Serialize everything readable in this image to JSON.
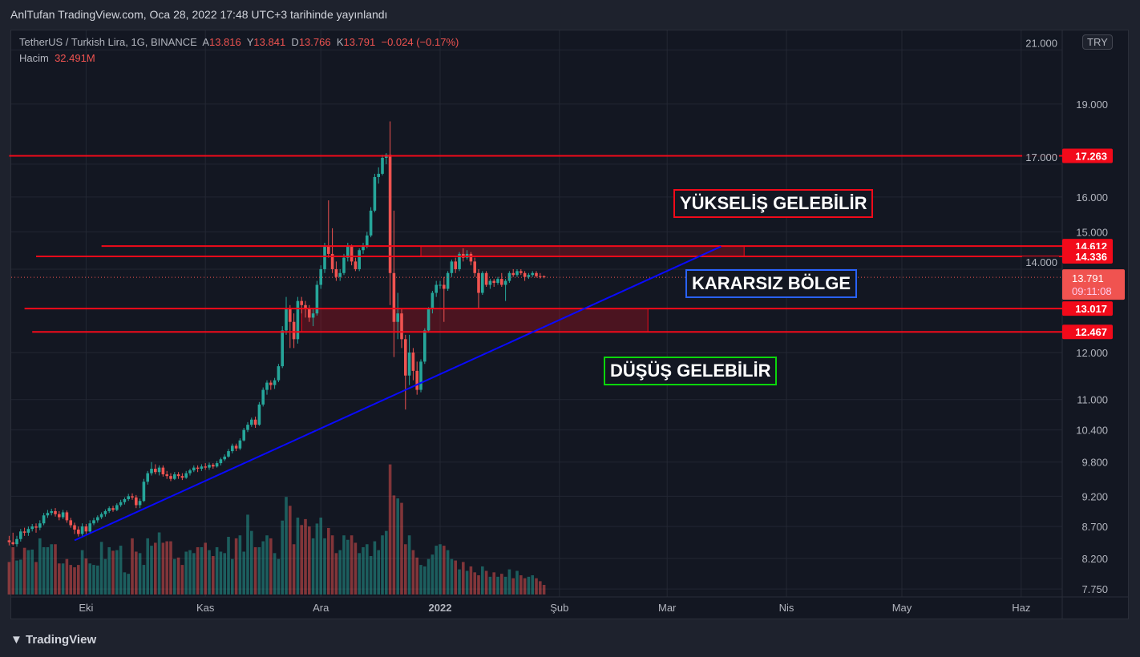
{
  "header": {
    "title": "AnlTufan TradingView.com, Oca 28, 2022 17:48 UTC+3 tarihinde yayınlandı"
  },
  "legend": {
    "symbol": "TetherUS / Turkish Lira, 1G, BINANCE",
    "open_label": "A",
    "open": "13.816",
    "high_label": "Y",
    "high": "13.841",
    "low_label": "D",
    "low": "13.766",
    "close_label": "K",
    "close": "13.791",
    "change": "−0.024 (−0.17%)",
    "volume_label": "Hacim",
    "volume": "32.491M"
  },
  "currency_button": "TRY",
  "footer": {
    "logo": "TradingView"
  },
  "colors": {
    "up": "#26a69a",
    "down": "#ef5350",
    "level": "#f20a1a",
    "trend": "#0a0aff",
    "bg": "#131722"
  },
  "chart_data": {
    "type": "candlestick",
    "y_scale": "log",
    "ylim": [
      7.6,
      21.5
    ],
    "grid": true,
    "y_ticks": [
      "21.000",
      "19.000",
      "17.000",
      "16.000",
      "15.000",
      "14.000",
      "12.000",
      "11.000",
      "10.400",
      "9.800",
      "9.200",
      "8.700",
      "8.200",
      "7.750"
    ],
    "x_ticks": [
      {
        "label": "Eki",
        "date": "2021-10-01"
      },
      {
        "label": "Kas",
        "date": "2021-11-01"
      },
      {
        "label": "Ara",
        "date": "2021-12-01"
      },
      {
        "label": "2022",
        "date": "2022-01-01"
      },
      {
        "label": "Şub",
        "date": "2022-02-01"
      },
      {
        "label": "Mar",
        "date": "2022-03-01"
      },
      {
        "label": "Nis",
        "date": "2022-04-01"
      },
      {
        "label": "May",
        "date": "2022-05-01"
      },
      {
        "label": "Haz",
        "date": "2022-06-01"
      }
    ],
    "last_price": {
      "value": "13.791",
      "countdown": "09:11:08"
    },
    "levels": [
      {
        "value": 17.263,
        "label": "17.263",
        "from": "2021-09-11"
      },
      {
        "value": 14.612,
        "label": "14.612",
        "from": "2021-10-05"
      },
      {
        "value": 14.336,
        "label": "14.336",
        "from": "2021-09-18"
      },
      {
        "value": 13.017,
        "label": "13.017",
        "from": "2021-09-15"
      },
      {
        "value": 12.467,
        "label": "12.467",
        "from": "2021-09-17"
      }
    ],
    "zones": [
      {
        "top": 14.612,
        "bottom": 14.336,
        "from": "2021-12-27",
        "to": "2022-03-21"
      },
      {
        "top": 13.017,
        "bottom": 12.467,
        "from": "2021-11-26",
        "to": "2022-02-24"
      }
    ],
    "trendline": {
      "from": {
        "date": "2021-09-28",
        "price": 8.48
      },
      "to": {
        "date": "2022-03-15",
        "price": 14.6
      }
    },
    "annotations": [
      {
        "text": "YÜKSELİŞ GELEBİLİR",
        "border": "#f20a1a"
      },
      {
        "text": "KARARSIZ BÖLGE",
        "border": "#2962ff"
      },
      {
        "text": "DÜŞÜŞ GELEBİLİR",
        "border": "#0bd60b"
      }
    ],
    "candles_columns": [
      "date",
      "open",
      "high",
      "low",
      "close",
      "volume_M"
    ],
    "candles": [
      [
        "2021-09-11",
        8.48,
        8.55,
        8.4,
        8.45,
        110
      ],
      [
        "2021-09-12",
        8.45,
        8.6,
        8.4,
        8.42,
        160
      ],
      [
        "2021-09-13",
        8.42,
        8.55,
        8.38,
        8.5,
        115
      ],
      [
        "2021-09-14",
        8.5,
        8.66,
        8.46,
        8.62,
        118
      ],
      [
        "2021-09-15",
        8.62,
        8.68,
        8.55,
        8.6,
        158
      ],
      [
        "2021-09-16",
        8.6,
        8.7,
        8.55,
        8.66,
        150
      ],
      [
        "2021-09-17",
        8.66,
        8.74,
        8.62,
        8.7,
        152
      ],
      [
        "2021-09-18",
        8.7,
        8.75,
        8.6,
        8.68,
        110
      ],
      [
        "2021-09-19",
        8.68,
        8.8,
        8.64,
        8.75,
        190
      ],
      [
        "2021-09-20",
        8.75,
        8.92,
        8.72,
        8.88,
        160
      ],
      [
        "2021-09-21",
        8.88,
        8.97,
        8.84,
        8.92,
        160
      ],
      [
        "2021-09-22",
        8.92,
        8.99,
        8.88,
        8.95,
        170
      ],
      [
        "2021-09-23",
        8.95,
        9.0,
        8.86,
        8.9,
        170
      ],
      [
        "2021-09-24",
        8.9,
        8.95,
        8.8,
        8.85,
        105
      ],
      [
        "2021-09-25",
        8.85,
        8.97,
        8.82,
        8.93,
        105
      ],
      [
        "2021-09-26",
        8.93,
        8.96,
        8.76,
        8.8,
        120
      ],
      [
        "2021-09-27",
        8.8,
        8.84,
        8.68,
        8.72,
        100
      ],
      [
        "2021-09-28",
        8.72,
        8.76,
        8.58,
        8.65,
        92
      ],
      [
        "2021-09-29",
        8.65,
        8.7,
        8.54,
        8.58,
        100
      ],
      [
        "2021-09-30",
        8.58,
        8.75,
        8.55,
        8.7,
        150
      ],
      [
        "2021-10-01",
        8.7,
        8.74,
        8.58,
        8.62,
        122
      ],
      [
        "2021-10-02",
        8.62,
        8.8,
        8.6,
        8.75,
        105
      ],
      [
        "2021-10-03",
        8.75,
        8.84,
        8.72,
        8.8,
        100
      ],
      [
        "2021-10-04",
        8.8,
        8.88,
        8.76,
        8.85,
        98
      ],
      [
        "2021-10-05",
        8.85,
        8.93,
        8.82,
        8.9,
        178
      ],
      [
        "2021-10-06",
        8.9,
        8.98,
        8.86,
        8.95,
        120
      ],
      [
        "2021-10-07",
        8.95,
        9.03,
        8.92,
        9.0,
        160
      ],
      [
        "2021-10-08",
        9.0,
        9.04,
        8.94,
        8.97,
        148
      ],
      [
        "2021-10-09",
        8.97,
        9.08,
        8.95,
        9.05,
        150
      ],
      [
        "2021-10-10",
        9.05,
        9.14,
        9.02,
        9.1,
        165
      ],
      [
        "2021-10-11",
        9.1,
        9.18,
        9.06,
        9.15,
        75
      ],
      [
        "2021-10-12",
        9.15,
        9.24,
        9.12,
        9.2,
        70
      ],
      [
        "2021-10-13",
        9.2,
        9.25,
        9.14,
        9.18,
        190
      ],
      [
        "2021-10-14",
        9.18,
        9.22,
        9.0,
        9.05,
        145
      ],
      [
        "2021-10-15",
        9.05,
        9.16,
        9.0,
        9.12,
        140
      ],
      [
        "2021-10-16",
        9.12,
        9.5,
        9.1,
        9.45,
        100
      ],
      [
        "2021-10-17",
        9.45,
        9.64,
        9.4,
        9.6,
        190
      ],
      [
        "2021-10-18",
        9.6,
        9.8,
        9.56,
        9.68,
        165
      ],
      [
        "2021-10-19",
        9.68,
        9.76,
        9.58,
        9.62,
        175
      ],
      [
        "2021-10-20",
        9.62,
        9.74,
        9.56,
        9.7,
        210
      ],
      [
        "2021-10-21",
        9.7,
        9.74,
        9.54,
        9.58,
        175
      ],
      [
        "2021-10-22",
        9.58,
        9.64,
        9.5,
        9.55,
        180
      ],
      [
        "2021-10-23",
        9.55,
        9.6,
        9.46,
        9.5,
        180
      ],
      [
        "2021-10-24",
        9.5,
        9.62,
        9.48,
        9.58,
        120
      ],
      [
        "2021-10-25",
        9.58,
        9.62,
        9.5,
        9.55,
        125
      ],
      [
        "2021-10-26",
        9.55,
        9.6,
        9.48,
        9.52,
        100
      ],
      [
        "2021-10-27",
        9.52,
        9.64,
        9.5,
        9.6,
        145
      ],
      [
        "2021-10-28",
        9.6,
        9.68,
        9.56,
        9.65,
        150
      ],
      [
        "2021-10-29",
        9.65,
        9.74,
        9.62,
        9.7,
        140
      ],
      [
        "2021-10-30",
        9.7,
        9.74,
        9.62,
        9.68,
        160
      ],
      [
        "2021-10-31",
        9.68,
        9.76,
        9.64,
        9.72,
        160
      ],
      [
        "2021-11-01",
        9.72,
        9.78,
        9.66,
        9.7,
        175
      ],
      [
        "2021-11-02",
        9.7,
        9.79,
        9.66,
        9.75,
        150
      ],
      [
        "2021-11-03",
        9.75,
        9.78,
        9.68,
        9.72,
        130
      ],
      [
        "2021-11-04",
        9.72,
        9.82,
        9.7,
        9.78,
        160
      ],
      [
        "2021-11-05",
        9.78,
        9.88,
        9.74,
        9.85,
        145
      ],
      [
        "2021-11-06",
        9.85,
        9.94,
        9.82,
        9.9,
        140
      ],
      [
        "2021-11-07",
        9.9,
        10.04,
        9.88,
        10.0,
        195
      ],
      [
        "2021-11-08",
        10.0,
        10.14,
        9.96,
        10.1,
        120
      ],
      [
        "2021-11-09",
        10.1,
        10.14,
        10.0,
        10.05,
        190
      ],
      [
        "2021-11-10",
        10.05,
        10.24,
        10.02,
        10.2,
        200
      ],
      [
        "2021-11-11",
        10.2,
        10.44,
        10.18,
        10.4,
        145
      ],
      [
        "2021-11-12",
        10.4,
        10.55,
        10.36,
        10.5,
        270
      ],
      [
        "2021-11-13",
        10.5,
        10.64,
        10.46,
        10.6,
        215
      ],
      [
        "2021-11-14",
        10.6,
        10.66,
        10.44,
        10.5,
        160
      ],
      [
        "2021-11-15",
        10.5,
        10.95,
        10.48,
        10.9,
        160
      ],
      [
        "2021-11-16",
        10.9,
        11.25,
        10.86,
        11.2,
        180
      ],
      [
        "2021-11-17",
        11.2,
        11.4,
        11.1,
        11.35,
        200
      ],
      [
        "2021-11-18",
        11.35,
        11.4,
        11.2,
        11.3,
        190
      ],
      [
        "2021-11-19",
        11.3,
        11.45,
        11.22,
        11.4,
        140
      ],
      [
        "2021-11-20",
        11.4,
        11.75,
        11.36,
        11.7,
        120
      ],
      [
        "2021-11-21",
        11.7,
        12.6,
        11.66,
        12.5,
        250
      ],
      [
        "2021-11-22",
        12.5,
        13.3,
        12.4,
        13.0,
        330
      ],
      [
        "2021-11-23",
        13.0,
        13.1,
        12.1,
        12.7,
        300
      ],
      [
        "2021-11-24",
        12.7,
        12.9,
        12.1,
        12.3,
        170
      ],
      [
        "2021-11-25",
        12.3,
        13.3,
        12.2,
        13.2,
        260
      ],
      [
        "2021-11-26",
        13.2,
        13.3,
        12.9,
        13.1,
        235
      ],
      [
        "2021-11-27",
        13.1,
        13.2,
        12.8,
        13.0,
        255
      ],
      [
        "2021-11-28",
        13.0,
        13.1,
        12.7,
        12.8,
        230
      ],
      [
        "2021-11-29",
        12.8,
        13.0,
        12.6,
        12.9,
        190
      ],
      [
        "2021-11-30",
        12.9,
        13.7,
        12.85,
        13.6,
        240
      ],
      [
        "2021-12-01",
        13.6,
        14.1,
        13.5,
        14.0,
        260
      ],
      [
        "2021-12-02",
        14.0,
        14.7,
        13.9,
        14.6,
        190
      ],
      [
        "2021-12-03",
        14.6,
        15.9,
        14.3,
        14.4,
        225
      ],
      [
        "2021-12-04",
        14.4,
        15.1,
        13.9,
        14.0,
        200
      ],
      [
        "2021-12-05",
        14.0,
        14.2,
        13.7,
        13.8,
        140
      ],
      [
        "2021-12-06",
        13.8,
        14.0,
        13.7,
        13.9,
        150
      ],
      [
        "2021-12-07",
        13.9,
        14.4,
        13.85,
        14.3,
        200
      ],
      [
        "2021-12-08",
        14.3,
        14.7,
        14.2,
        14.6,
        185
      ],
      [
        "2021-12-09",
        14.6,
        14.65,
        14.1,
        14.2,
        200
      ],
      [
        "2021-12-10",
        14.2,
        14.3,
        13.95,
        14.0,
        175
      ],
      [
        "2021-12-11",
        14.0,
        14.55,
        13.95,
        14.5,
        140
      ],
      [
        "2021-12-12",
        14.5,
        14.7,
        14.4,
        14.6,
        160
      ],
      [
        "2021-12-13",
        14.6,
        15.0,
        14.55,
        14.9,
        170
      ],
      [
        "2021-12-14",
        14.9,
        15.7,
        14.85,
        15.6,
        130
      ],
      [
        "2021-12-15",
        15.6,
        16.7,
        15.55,
        16.6,
        180
      ],
      [
        "2021-12-16",
        16.6,
        16.9,
        16.4,
        16.7,
        150
      ],
      [
        "2021-12-17",
        16.7,
        17.3,
        16.65,
        17.2,
        200
      ],
      [
        "2021-12-18",
        17.2,
        17.35,
        17.0,
        17.3,
        215
      ],
      [
        "2021-12-19",
        17.3,
        18.4,
        13.1,
        13.9,
        440
      ],
      [
        "2021-12-20",
        13.9,
        15.6,
        11.9,
        12.7,
        335
      ],
      [
        "2021-12-21",
        12.7,
        13.4,
        12.3,
        12.9,
        325
      ],
      [
        "2021-12-22",
        12.9,
        13.0,
        12.1,
        12.3,
        310
      ],
      [
        "2021-12-23",
        12.3,
        12.4,
        10.8,
        11.5,
        170
      ],
      [
        "2021-12-24",
        11.5,
        12.4,
        11.3,
        12.0,
        200
      ],
      [
        "2021-12-25",
        12.0,
        12.1,
        11.4,
        11.6,
        150
      ],
      [
        "2021-12-26",
        11.6,
        11.8,
        11.1,
        11.2,
        125
      ],
      [
        "2021-12-27",
        11.2,
        11.85,
        11.15,
        11.8,
        100
      ],
      [
        "2021-12-28",
        11.8,
        12.55,
        11.75,
        12.5,
        95
      ],
      [
        "2021-12-29",
        12.5,
        13.05,
        12.45,
        13.0,
        120
      ],
      [
        "2021-12-30",
        13.0,
        13.45,
        12.9,
        13.4,
        135
      ],
      [
        "2021-12-31",
        13.4,
        13.7,
        13.3,
        13.6,
        165
      ],
      [
        "2022-01-01",
        13.6,
        13.7,
        13.5,
        13.6,
        170
      ],
      [
        "2022-01-02",
        13.6,
        13.8,
        12.7,
        13.5,
        165
      ],
      [
        "2022-01-03",
        13.5,
        13.95,
        13.45,
        13.9,
        150
      ],
      [
        "2022-01-04",
        13.9,
        14.25,
        13.8,
        14.2,
        120
      ],
      [
        "2022-01-05",
        14.2,
        14.3,
        13.9,
        14.0,
        115
      ],
      [
        "2022-01-06",
        14.0,
        14.45,
        13.95,
        14.4,
        85
      ],
      [
        "2022-01-07",
        14.4,
        14.55,
        14.2,
        14.3,
        110
      ],
      [
        "2022-01-08",
        14.3,
        14.5,
        14.25,
        14.4,
        80
      ],
      [
        "2022-01-09",
        14.4,
        14.45,
        14.1,
        14.2,
        95
      ],
      [
        "2022-01-10",
        14.2,
        14.3,
        13.8,
        13.9,
        75
      ],
      [
        "2022-01-11",
        13.9,
        14.0,
        13.0,
        13.4,
        65
      ],
      [
        "2022-01-12",
        13.4,
        13.95,
        13.35,
        13.9,
        95
      ],
      [
        "2022-01-13",
        13.9,
        13.95,
        13.55,
        13.6,
        80
      ],
      [
        "2022-01-14",
        13.6,
        13.75,
        13.5,
        13.7,
        60
      ],
      [
        "2022-01-15",
        13.7,
        13.75,
        13.55,
        13.65,
        75
      ],
      [
        "2022-01-16",
        13.65,
        13.8,
        13.6,
        13.75,
        60
      ],
      [
        "2022-01-17",
        13.75,
        13.9,
        13.55,
        13.6,
        70
      ],
      [
        "2022-01-18",
        13.6,
        13.75,
        13.2,
        13.7,
        60
      ],
      [
        "2022-01-19",
        13.7,
        13.95,
        13.65,
        13.9,
        85
      ],
      [
        "2022-01-20",
        13.9,
        14.0,
        13.8,
        13.85,
        55
      ],
      [
        "2022-01-21",
        13.85,
        14.0,
        13.8,
        13.95,
        80
      ],
      [
        "2022-01-22",
        13.95,
        14.0,
        13.85,
        13.9,
        65
      ],
      [
        "2022-01-23",
        13.9,
        13.95,
        13.7,
        13.8,
        55
      ],
      [
        "2022-01-24",
        13.8,
        13.9,
        13.75,
        13.85,
        60
      ],
      [
        "2022-01-25",
        13.85,
        13.95,
        13.8,
        13.9,
        65
      ],
      [
        "2022-01-26",
        13.9,
        13.95,
        13.78,
        13.82,
        55
      ],
      [
        "2022-01-27",
        13.82,
        13.9,
        13.76,
        13.8,
        45
      ],
      [
        "2022-01-28",
        13.816,
        13.841,
        13.766,
        13.791,
        32.491
      ]
    ]
  }
}
